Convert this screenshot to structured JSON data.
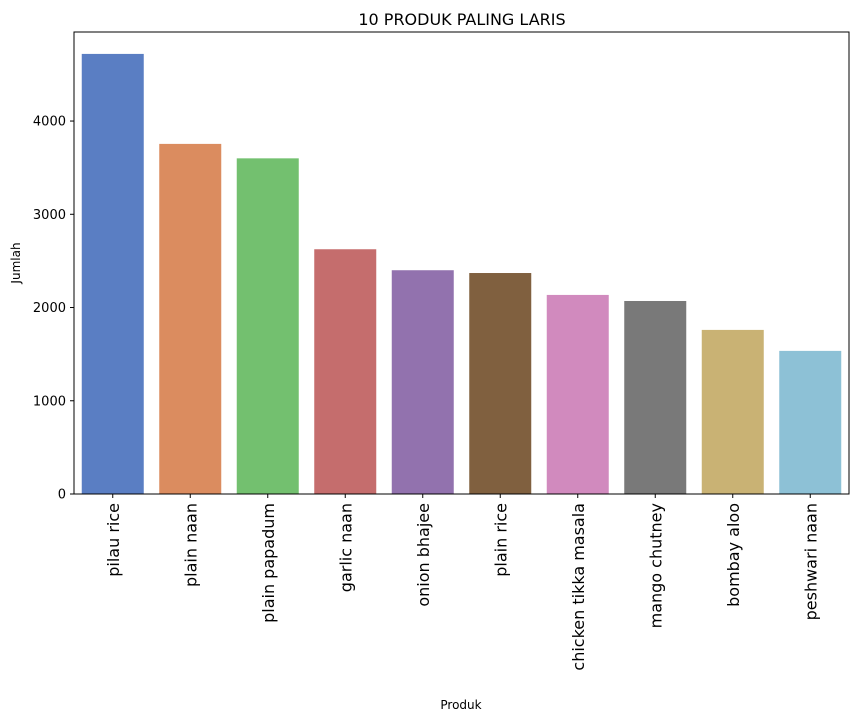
{
  "chart_data": {
    "type": "bar",
    "title": "10 PRODUK PALING LARIS",
    "xlabel": "Produk",
    "ylabel": "Jumlah",
    "categories": [
      "pilau rice",
      "plain naan",
      "plain papadum",
      "garlic naan",
      "onion bhajee",
      "plain rice",
      "chicken tikka masala",
      "mango chutney",
      "bombay aloo",
      "peshwari naan"
    ],
    "values": [
      4720,
      3755,
      3600,
      2625,
      2400,
      2370,
      2135,
      2070,
      1760,
      1535
    ],
    "colors": [
      "#5a7ec3",
      "#db8c5f",
      "#73c06f",
      "#c56d6d",
      "#9272ae",
      "#80603f",
      "#d18abe",
      "#797979",
      "#c9b274",
      "#8dc1d6"
    ],
    "yticks": [
      "0",
      "1000",
      "2000",
      "3000",
      "4000"
    ],
    "ylim": [
      0,
      4955
    ],
    "grid": false,
    "legend": "none"
  }
}
